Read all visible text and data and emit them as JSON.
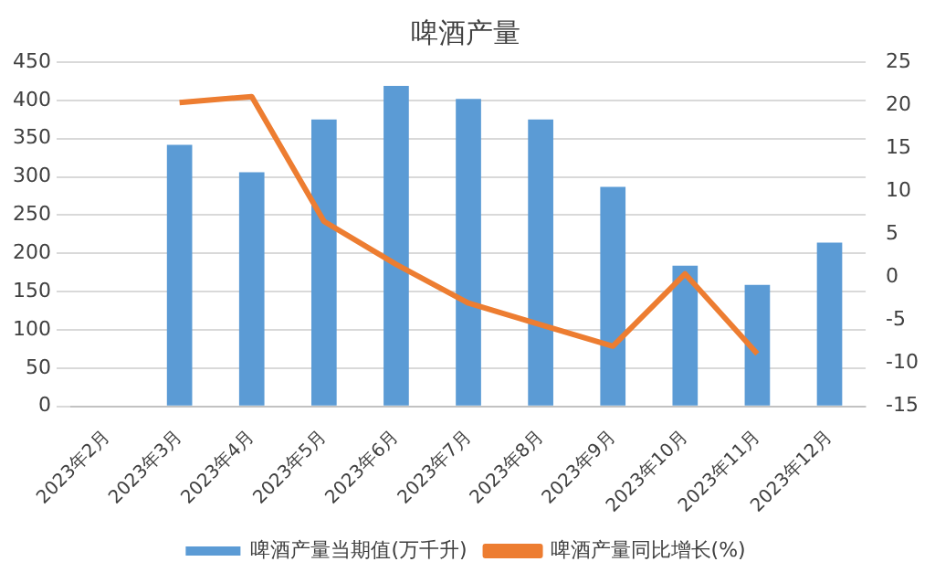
{
  "chart_data": {
    "type": "bar",
    "title": "啤酒产量",
    "categories": [
      "2023年2月",
      "2023年3月",
      "2023年4月",
      "2023年5月",
      "2023年6月",
      "2023年7月",
      "2023年8月",
      "2023年9月",
      "2023年10月",
      "2023年11月",
      "2023年12月"
    ],
    "series": [
      {
        "name": "啤酒产量当期值(万千升)",
        "color": "#5b9bd5",
        "values": [
          null,
          342,
          306,
          375,
          419,
          402,
          375,
          287,
          184,
          159,
          214
        ]
      },
      {
        "name": "啤酒产量同比增长(%)",
        "type": "line",
        "axis": "y2",
        "color": "#ed7d31",
        "values": [
          null,
          20.3,
          21,
          6.5,
          1.5,
          -3,
          -5.5,
          -8,
          0.4,
          -8.9,
          null
        ]
      }
    ],
    "ylim": [
      0,
      450
    ],
    "yticks": [
      0,
      50,
      100,
      150,
      200,
      250,
      300,
      350,
      400,
      450
    ],
    "y2lim": [
      -15,
      25
    ],
    "y2ticks": [
      -15,
      -10,
      -5,
      0,
      5,
      10,
      15,
      20,
      25
    ],
    "grid": "y",
    "legend": "bottom",
    "marker": "none"
  }
}
